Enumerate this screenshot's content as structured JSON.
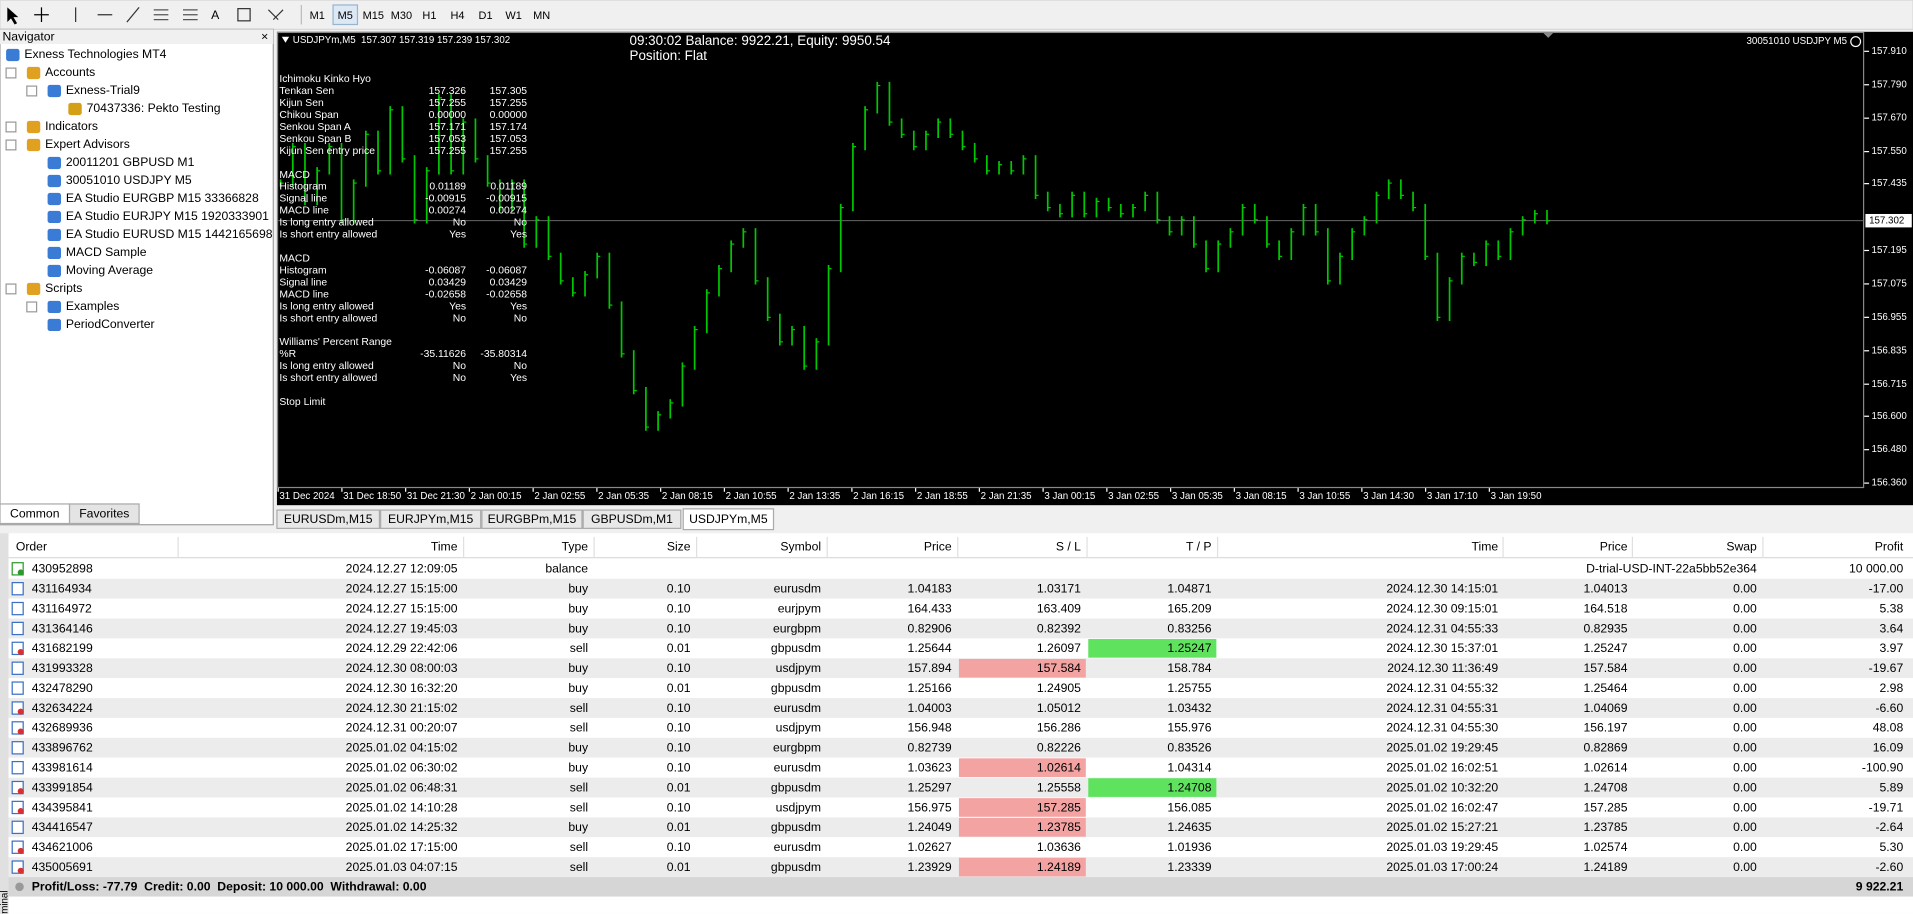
{
  "toolbar": {
    "timeframes": [
      "M1",
      "M5",
      "M15",
      "M30",
      "H1",
      "H4",
      "D1",
      "W1",
      "MN"
    ]
  },
  "navigator": {
    "title": "Navigator",
    "close": "×",
    "nodes": [
      {
        "label": "Exness Technologies MT4",
        "level": 0
      },
      {
        "label": "Accounts",
        "level": 1
      },
      {
        "label": "Exness-Trial9",
        "level": 2
      },
      {
        "label": "70437336: Pekto Testing",
        "level": 3
      },
      {
        "label": "Indicators",
        "level": 1
      },
      {
        "label": "Expert Advisors",
        "level": 1
      },
      {
        "label": "20011201 GBPUSD M1",
        "level": 2
      },
      {
        "label": "30051010 USDJPY M5",
        "level": 2
      },
      {
        "label": "EA Studio EURGBP M15 33366828",
        "level": 2
      },
      {
        "label": "EA Studio EURJPY M15 1920333901",
        "level": 2
      },
      {
        "label": "EA Studio EURUSD M15 1442165698",
        "level": 2
      },
      {
        "label": "MACD Sample",
        "level": 2
      },
      {
        "label": "Moving Average",
        "level": 2
      },
      {
        "label": "Scripts",
        "level": 1
      },
      {
        "label": "Examples",
        "level": 2
      },
      {
        "label": "PeriodConverter",
        "level": 2
      }
    ],
    "tabs": [
      "Common",
      "Favorites"
    ]
  },
  "chart_data": {
    "type": "bar",
    "header": "USDJPYm,M5  157.307 157.319 157.239 157.302",
    "status": [
      "09:30:02 Balance: 9922.21, Equity: 9950.54",
      "Position: Flat"
    ],
    "expert": "30051010 USDJPY M5",
    "indicators": [
      {
        "title": "Ichimoku Kinko Hyo",
        "rows": [
          [
            "Tenkan Sen",
            "157.326",
            "157.305"
          ],
          [
            "Kijun Sen",
            "157.255",
            "157.255"
          ],
          [
            "Chikou Span",
            "0.00000",
            "0.00000"
          ],
          [
            "Senkou Span A",
            "157.171",
            "157.174"
          ],
          [
            "Senkou Span B",
            "157.053",
            "157.053"
          ],
          [
            "Kijun Sen entry price",
            "157.255",
            "157.255"
          ]
        ]
      },
      {
        "title": "MACD",
        "rows": [
          [
            "Histogram",
            "0.01189",
            "0.01189"
          ],
          [
            "Signal line",
            "-0.00915",
            "-0.00915"
          ],
          [
            "MACD line",
            "0.00274",
            "0.00274"
          ],
          [
            "Is long entry allowed",
            "No",
            "No"
          ],
          [
            "Is short entry allowed",
            "Yes",
            "Yes"
          ]
        ]
      },
      {
        "title": "MACD",
        "rows": [
          [
            "Histogram",
            "-0.06087",
            "-0.06087"
          ],
          [
            "Signal line",
            "0.03429",
            "0.03429"
          ],
          [
            "MACD line",
            "-0.02658",
            "-0.02658"
          ],
          [
            "Is long entry allowed",
            "Yes",
            "Yes"
          ],
          [
            "Is short entry allowed",
            "No",
            "No"
          ]
        ]
      },
      {
        "title": "Williams' Percent Range",
        "rows": [
          [
            "%R",
            "-35.11626",
            "-35.80314"
          ],
          [
            "Is long entry allowed",
            "No",
            "No"
          ],
          [
            "Is short entry allowed",
            "No",
            "Yes"
          ]
        ]
      },
      {
        "title": "Stop Limit",
        "rows": []
      }
    ],
    "values": [
      157.437,
      157.568,
      157.371,
      157.481,
      157.568,
      157.305,
      157.437,
      157.612,
      157.481,
      157.7,
      157.524,
      157.305,
      157.481,
      157.743,
      157.481,
      157.656,
      157.524,
      157.437,
      157.349,
      157.437,
      157.218,
      157.305,
      157.174,
      157.086,
      157.043,
      157.108,
      157.174,
      156.999,
      156.824,
      156.692,
      156.561,
      156.605,
      156.648,
      156.78,
      156.911,
      157.043,
      157.13,
      157.218,
      157.262,
      157.086,
      156.955,
      156.867,
      156.911,
      156.78,
      156.867,
      157.13,
      157.349,
      157.568,
      157.7,
      157.787,
      157.656,
      157.612,
      157.568,
      157.612,
      157.656,
      157.612,
      157.568,
      157.524,
      157.481,
      157.503,
      157.481,
      157.524,
      157.393,
      157.349,
      157.327,
      157.393,
      157.327,
      157.371,
      157.349,
      157.327,
      157.349,
      157.393,
      157.305,
      157.262,
      157.305,
      157.218,
      157.13,
      157.218,
      157.262,
      157.349,
      157.305,
      157.218,
      157.174,
      157.262,
      157.349,
      157.262,
      157.086,
      157.174,
      157.262,
      157.305,
      157.393,
      157.437,
      157.393,
      157.349,
      157.174,
      156.955,
      157.086,
      157.174,
      157.152,
      157.218,
      157.174,
      157.262,
      157.305,
      157.327,
      157.302
    ],
    "color": "#00c800",
    "ylim": [
      156.342,
      157.98
    ],
    "yticks": [
      {
        "value": 157.91,
        "label": "157.910"
      },
      {
        "value": 157.79,
        "label": "157.790"
      },
      {
        "value": 157.67,
        "label": "157.670"
      },
      {
        "value": 157.55,
        "label": "157.550"
      },
      157.435,
      157.195,
      157.075,
      156.955,
      156.835,
      156.715,
      {
        "value": 156.6,
        "label": "156.600"
      },
      {
        "value": 156.48,
        "label": "156.480"
      },
      {
        "value": 156.36,
        "label": "156.360"
      }
    ],
    "current_price": 157.302,
    "x_labels": [
      "31 Dec 2024",
      "31 Dec 18:50",
      "31 Dec 21:30",
      "2 Jan 00:15",
      "2 Jan 02:55",
      "2 Jan 05:35",
      "2 Jan 08:15",
      "2 Jan 10:55",
      "2 Jan 13:35",
      "2 Jan 16:15",
      "2 Jan 18:55",
      "2 Jan 21:35",
      "3 Jan 00:15",
      "3 Jan 02:55",
      "3 Jan 05:35",
      "3 Jan 08:15",
      "3 Jan 10:55",
      "3 Jan 14:30",
      "3 Jan 17:10",
      "3 Jan 19:50"
    ]
  },
  "chart_tabs": {
    "tabs": [
      "EURUSDm,M15",
      "EURJPYm,M15",
      "EURGBPm,M15",
      "GBPUSDm,M1",
      "USDJPYm,M5"
    ],
    "active": 4
  },
  "terminal": {
    "label": "Terminal",
    "columns": [
      "Order",
      "Time",
      "Type",
      "Size",
      "Symbol",
      "Price",
      "S / L",
      "T / P",
      "Time",
      "Price",
      "Swap",
      "Profit"
    ],
    "rows": [
      {
        "cells": [
          "430952898",
          "2024.12.27 12:09:05",
          "balance",
          null,
          null,
          null,
          null,
          null,
          null,
          null,
          "D-trial-USD-INT-22a5bb52e364",
          "10 000.00"
        ]
      },
      {
        "cells": [
          "431164934",
          "2024.12.27 15:15:00",
          "buy",
          "0.10",
          "eurusdm",
          "1.04183",
          "1.03171",
          "1.04871",
          "2024.12.30 14:15:01",
          "1.04013",
          "0.00",
          "-17.00"
        ]
      },
      {
        "cells": [
          "431164972",
          "2024.12.27 15:15:00",
          "buy",
          "0.10",
          "eurjpym",
          "164.433",
          "163.409",
          "165.209",
          "2024.12.30 09:15:01",
          "164.518",
          "0.00",
          "5.38"
        ]
      },
      {
        "cells": [
          "431364146",
          "2024.12.27 19:45:03",
          "buy",
          "0.10",
          "eurgbpm",
          "0.82906",
          "0.82392",
          "0.83256",
          "2024.12.31 04:55:33",
          "0.82935",
          "0.00",
          "3.64"
        ]
      },
      {
        "cells": [
          "431682199",
          "2024.12.29 22:42:06",
          "sell",
          "0.01",
          "gbpusdm",
          "1.25644",
          "1.26097",
          "1.25247",
          "2024.12.30 15:37:01",
          "1.25247",
          "0.00",
          "3.97"
        ],
        "highlight": "tp"
      },
      {
        "cells": [
          "431993328",
          "2024.12.30 08:00:03",
          "buy",
          "0.10",
          "usdjpym",
          "157.894",
          "157.584",
          "158.784",
          "2024.12.30 11:36:49",
          "157.584",
          "0.00",
          "-19.67"
        ],
        "highlight": "sl"
      },
      {
        "cells": [
          "432478290",
          "2024.12.30 16:32:20",
          "buy",
          "0.01",
          "gbpusdm",
          "1.25166",
          "1.24905",
          "1.25755",
          "2024.12.31 04:55:32",
          "1.25464",
          "0.00",
          "2.98"
        ]
      },
      {
        "cells": [
          "432634224",
          "2024.12.30 21:15:02",
          "sell",
          "0.10",
          "eurusdm",
          "1.04003",
          "1.05012",
          "1.03432",
          "2024.12.31 04:55:31",
          "1.04069",
          "0.00",
          "-6.60"
        ]
      },
      {
        "cells": [
          "432689936",
          "2024.12.31 00:20:07",
          "sell",
          "0.10",
          "usdjpym",
          "156.948",
          "156.286",
          "155.976",
          "2024.12.31 04:55:30",
          "156.197",
          "0.00",
          "48.08"
        ]
      },
      {
        "cells": [
          "433896762",
          "2025.01.02 04:15:02",
          "buy",
          "0.10",
          "eurgbpm",
          "0.82739",
          "0.82226",
          "0.83526",
          "2025.01.02 19:29:45",
          "0.82869",
          "0.00",
          "16.09"
        ]
      },
      {
        "cells": [
          "433981614",
          "2025.01.02 06:30:02",
          "buy",
          "0.10",
          "eurusdm",
          "1.03623",
          "1.02614",
          "1.04314",
          "2025.01.02 16:02:51",
          "1.02614",
          "0.00",
          "-100.90"
        ],
        "highlight": "sl"
      },
      {
        "cells": [
          "433991854",
          "2025.01.02 06:48:31",
          "sell",
          "0.01",
          "gbpusdm",
          "1.25297",
          "1.25558",
          "1.24708",
          "2025.01.02 10:32:20",
          "1.24708",
          "0.00",
          "5.89"
        ],
        "highlight": "tp"
      },
      {
        "cells": [
          "434395841",
          "2025.01.02 14:10:28",
          "sell",
          "0.10",
          "usdjpym",
          "156.975",
          "157.285",
          "156.085",
          "2025.01.02 16:02:47",
          "157.285",
          "0.00",
          "-19.71"
        ],
        "highlight": "sl"
      },
      {
        "cells": [
          "434416547",
          "2025.01.02 14:25:32",
          "buy",
          "0.01",
          "gbpusdm",
          "1.24049",
          "1.23785",
          "1.24635",
          "2025.01.02 15:27:21",
          "1.23785",
          "0.00",
          "-2.64"
        ],
        "highlight": "sl"
      },
      {
        "cells": [
          "434621006",
          "2025.01.02 17:15:00",
          "sell",
          "0.10",
          "eurusdm",
          "1.02627",
          "1.03636",
          "1.01936",
          "2025.01.03 19:29:45",
          "1.02574",
          "0.00",
          "5.30"
        ]
      },
      {
        "cells": [
          "435005691",
          "2025.01.03 04:07:15",
          "sell",
          "0.01",
          "gbpusdm",
          "1.23929",
          "1.24189",
          "1.23339",
          "2025.01.03 17:00:24",
          "1.24189",
          "0.00",
          "-2.60"
        ],
        "highlight": "sl"
      }
    ],
    "footer": {
      "summary": "Profit/Loss: -77.79  Credit: 0.00  Deposit: 10 000.00  Withdrawal: 0.00",
      "total": "9 922.21"
    }
  }
}
